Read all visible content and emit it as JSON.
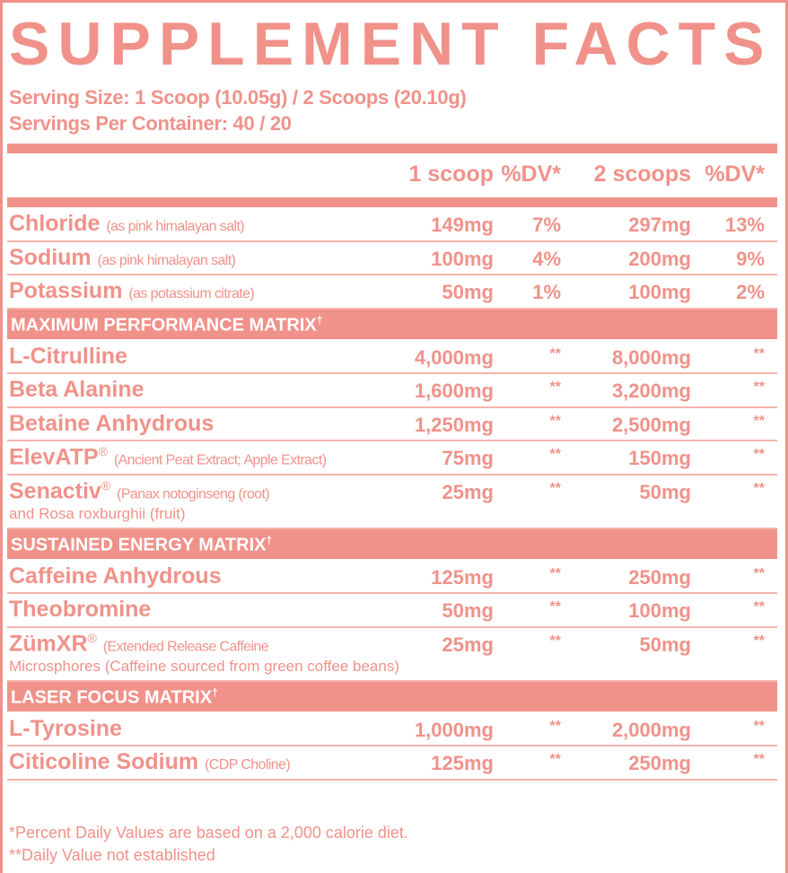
{
  "title": "SUPPLEMENT FACTS",
  "serving_size": "Serving Size: 1 Scoop (10.05g) / 2 Scoops (20.10g)",
  "servings_per_container": "Servings Per Container: 40 / 20",
  "columns": [
    "1 scoop",
    "%DV*",
    "2 scoops",
    "%DV*"
  ],
  "electrolytes": [
    {
      "name": "Chloride",
      "sub": "(as pink himalayan salt)",
      "v1": "149mg",
      "dv1": "7%",
      "v2": "297mg",
      "dv2": "13%"
    },
    {
      "name": "Sodium",
      "sub": "(as pink himalayan salt)",
      "v1": "100mg",
      "dv1": "4%",
      "v2": "200mg",
      "dv2": "9%"
    },
    {
      "name": "Potassium",
      "sub": "(as potassium citrate)",
      "v1": "50mg",
      "dv1": "1%",
      "v2": "100mg",
      "dv2": "2%"
    }
  ],
  "sections": [
    {
      "title": "MAXIMUM PERFORMANCE MATRIX",
      "mark": "†",
      "items": [
        {
          "name": "L-Citrulline",
          "v1": "4,000mg",
          "dv1": "**",
          "v2": "8,000mg",
          "dv2": "**"
        },
        {
          "name": "Beta Alanine",
          "v1": "1,600mg",
          "dv1": "**",
          "v2": "3,200mg",
          "dv2": "**"
        },
        {
          "name": "Betaine Anhydrous",
          "v1": "1,250mg",
          "dv1": "**",
          "v2": "2,500mg",
          "dv2": "**"
        },
        {
          "name": "ElevATP",
          "reg": "®",
          "sub": "(Ancient Peat Extract; Apple Extract)",
          "v1": "75mg",
          "dv1": "**",
          "v2": "150mg",
          "dv2": "**"
        },
        {
          "name": "Senactiv",
          "reg": "®",
          "sub": "(Panax notoginseng (root)",
          "sub2": "and Rosa roxburghii (fruit)",
          "v1": "25mg",
          "dv1": "**",
          "v2": "50mg",
          "dv2": "**"
        }
      ]
    },
    {
      "title": "SUSTAINED ENERGY MATRIX",
      "mark": "†",
      "items": [
        {
          "name": "Caffeine Anhydrous",
          "v1": "125mg",
          "dv1": "**",
          "v2": "250mg",
          "dv2": "**"
        },
        {
          "name": "Theobromine",
          "v1": "50mg",
          "dv1": "**",
          "v2": "100mg",
          "dv2": "**"
        },
        {
          "name": "ZümXR",
          "reg": "®",
          "sub": "(Extended Release Caffeine",
          "sub2": "Microsphores (Caffeine sourced from green coffee beans)",
          "v1": "25mg",
          "dv1": "**",
          "v2": "50mg",
          "dv2": "**"
        }
      ]
    },
    {
      "title": "LASER FOCUS MATRIX",
      "mark": "†",
      "items": [
        {
          "name": "L-Tyrosine",
          "v1": "1,000mg",
          "dv1": "**",
          "v2": "2,000mg",
          "dv2": "**"
        },
        {
          "name": "Citicoline Sodium",
          "sub": "(CDP Choline)",
          "v1": "125mg",
          "dv1": "**",
          "v2": "250mg",
          "dv2": "**"
        }
      ]
    }
  ],
  "footnotes": [
    "*Percent Daily Values are based on a 2,000 calorie diet.",
    "**Daily Value not established"
  ],
  "colors": {
    "accent": "#f0928a",
    "background": "#ffffff"
  }
}
